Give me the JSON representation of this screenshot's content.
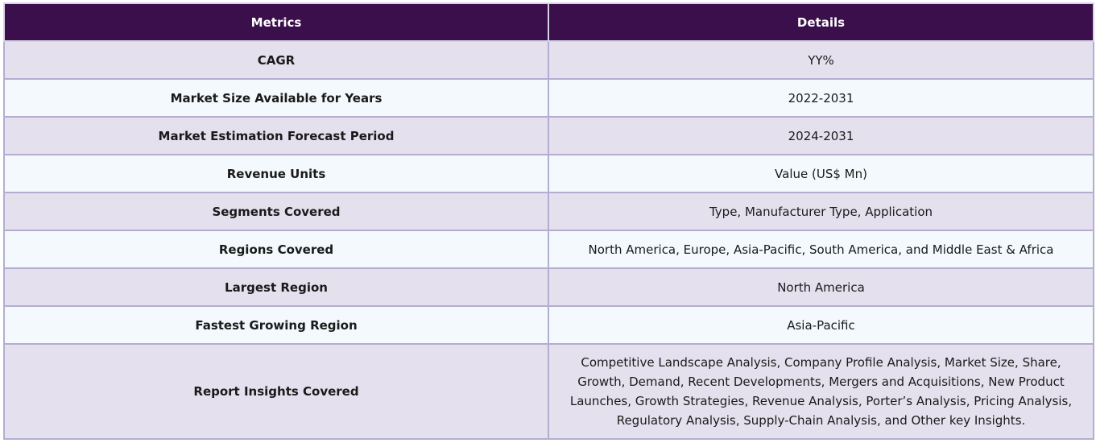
{
  "table": {
    "headers": {
      "metrics": "Metrics",
      "details": "Details"
    },
    "rows": [
      {
        "metric": "CAGR",
        "detail": "YY%"
      },
      {
        "metric": "Market Size Available for Years",
        "detail": "2022-2031"
      },
      {
        "metric": "Market Estimation Forecast Period",
        "detail": "2024-2031"
      },
      {
        "metric": "Revenue Units",
        "detail": "Value (US$ Mn)"
      },
      {
        "metric": "Segments Covered",
        "detail": "Type, Manufacturer Type, Application"
      },
      {
        "metric": "Regions Covered",
        "detail": "North America, Europe, Asia-Pacific, South America, and Middle East & Africa"
      },
      {
        "metric": "Largest Region",
        "detail": "North America"
      },
      {
        "metric": "Fastest Growing Region",
        "detail": "Asia-Pacific"
      },
      {
        "metric": "Report Insights Covered",
        "detail": "Competitive Landscape Analysis, Company Profile Analysis, Market Size, Share, Growth, Demand, Recent Developments, Mergers and Acquisitions, New Product Launches, Growth Strategies, Revenue Analysis, Porter’s Analysis, Pricing Analysis, Regulatory Analysis, Supply-Chain Analysis, and Other key Insights."
      }
    ]
  },
  "colors": {
    "header_bg": "#3a0f4b",
    "row_odd_bg": "#e4e0ee",
    "row_even_bg": "#f3f9fc",
    "border": "#b3aed0"
  }
}
